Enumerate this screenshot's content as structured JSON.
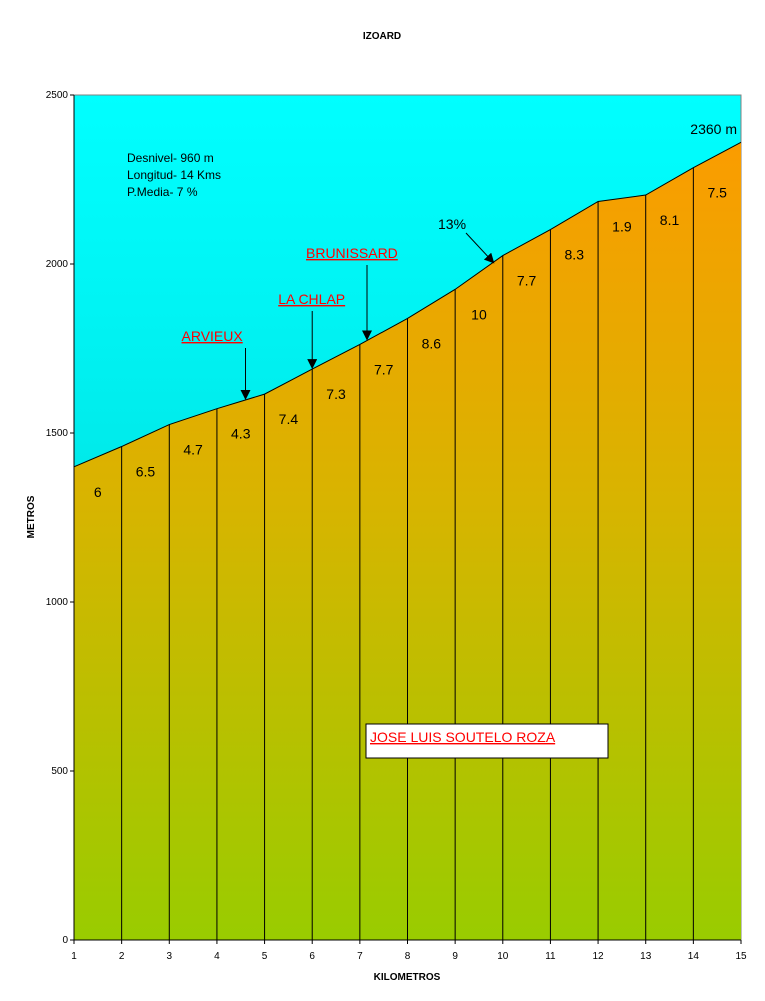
{
  "chart_data": {
    "type": "area",
    "title": "IZOARD",
    "xlabel": "KILOMETROS",
    "ylabel": "METROS",
    "xlim": [
      1,
      15
    ],
    "ylim": [
      0,
      2500
    ],
    "x_ticks": [
      "1",
      "2",
      "3",
      "4",
      "5",
      "6",
      "7",
      "8",
      "9",
      "10",
      "11",
      "12",
      "13",
      "14",
      "15"
    ],
    "y_ticks": [
      "0",
      "500",
      "1000",
      "1500",
      "2000",
      "2500"
    ],
    "grid": false,
    "legend": "none",
    "x": [
      1,
      2,
      3,
      4,
      5,
      6,
      7,
      8,
      9,
      10,
      11,
      12,
      13,
      14,
      15
    ],
    "elevation": [
      1400,
      1460,
      1525,
      1572,
      1615,
      1689,
      1762,
      1839,
      1925,
      2025,
      2102,
      2185,
      2204,
      2285,
      2360
    ],
    "segment_gradients": [
      "6",
      "6.5",
      "4.7",
      "4.3",
      "7.4",
      "7.3",
      "7.7",
      "8.6",
      "10",
      "7.7",
      "8.3",
      "1.9",
      "8.1",
      "7.5"
    ],
    "info_lines": [
      "Desnivel- 960 m",
      "Longitud- 14 Kms",
      "P.Media- 7 %"
    ],
    "summit_label": "2360 m",
    "max_gradient_label": "13%",
    "places": [
      {
        "name": "ARVIEUX",
        "km": 4.6
      },
      {
        "name": "LA CHLAP",
        "km": 6.0
      },
      {
        "name": "BRUNISSARD",
        "km": 7.15
      }
    ],
    "author": "JOSE LUIS SOUTELO ROZA",
    "colors": {
      "sky_top": "#00ffff",
      "sky_bottom": "#00cccc",
      "fill_top": "#ff9900",
      "fill_bottom": "#99cc00",
      "place_text": "#ff0000"
    }
  }
}
